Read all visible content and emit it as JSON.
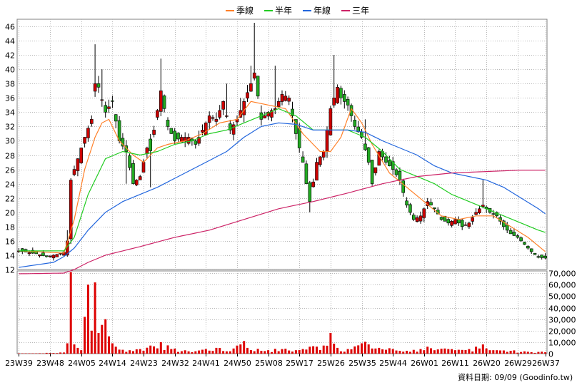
{
  "legend": [
    {
      "name": "季線",
      "color": "#ff7f27"
    },
    {
      "name": "半年",
      "color": "#22cc22"
    },
    {
      "name": "年線",
      "color": "#2266dd"
    },
    {
      "name": "三年",
      "color": "#cc2266"
    }
  ],
  "footer": {
    "label": "資料日期:",
    "date": "09/09",
    "source": "(Goodinfo.tw)"
  },
  "colors": {
    "up": "#cc0000",
    "down": "#22aa22",
    "volume": "#dd0000",
    "grid": "#b8b8b8",
    "frame": "#808080"
  },
  "chart_data": {
    "type": "candlestick",
    "price_axis": {
      "min": 12,
      "max": 47,
      "ticks": [
        12,
        14,
        16,
        18,
        20,
        22,
        24,
        26,
        28,
        30,
        32,
        34,
        36,
        38,
        40,
        42,
        44,
        46
      ]
    },
    "volume_axis": {
      "min": 0,
      "max": 72000,
      "ticks": [
        "0",
        "10,000",
        "20,000",
        "30,000",
        "40,000",
        "50,000",
        "60,000",
        "70,000"
      ],
      "values": [
        0,
        10000,
        20000,
        30000,
        40000,
        50000,
        60000,
        70000
      ]
    },
    "x_labels": [
      "23W39",
      "23W48",
      "24W05",
      "24W14",
      "24W23",
      "24W32",
      "24W41",
      "24W50",
      "25W08",
      "25W17",
      "25W26",
      "25W35",
      "25W44",
      "26W01",
      "26W11",
      "26W20",
      "26W29",
      "26W37"
    ],
    "x_label_index": [
      0,
      9,
      18,
      27,
      36,
      45,
      54,
      63,
      72,
      81,
      90,
      99,
      108,
      117,
      126,
      135,
      144,
      152
    ],
    "anchors": [
      [
        0,
        14.6
      ],
      [
        5,
        14.2
      ],
      [
        8,
        13.8
      ],
      [
        11,
        14.1
      ],
      [
        13,
        14.4
      ],
      [
        14,
        16.0
      ],
      [
        15,
        24.5
      ],
      [
        17,
        27.5
      ],
      [
        19,
        30.5
      ],
      [
        21,
        33.0
      ],
      [
        22,
        38.0
      ],
      [
        23,
        37.5
      ],
      [
        25,
        34.0
      ],
      [
        27,
        35.5
      ],
      [
        29,
        30.0
      ],
      [
        31,
        28.5
      ],
      [
        33,
        24.0
      ],
      [
        35,
        25.0
      ],
      [
        37,
        29.0
      ],
      [
        39,
        31.5
      ],
      [
        41,
        37.0
      ],
      [
        43,
        32.0
      ],
      [
        45,
        30.0
      ],
      [
        47,
        30.5
      ],
      [
        49,
        30.5
      ],
      [
        51,
        29.5
      ],
      [
        53,
        31.5
      ],
      [
        55,
        33.5
      ],
      [
        57,
        33.0
      ],
      [
        59,
        35.5
      ],
      [
        61,
        31.5
      ],
      [
        63,
        33.0
      ],
      [
        65,
        35.5
      ],
      [
        67,
        38.0
      ],
      [
        68,
        39.5
      ],
      [
        70,
        33.0
      ],
      [
        72,
        34.0
      ],
      [
        74,
        34.5
      ],
      [
        76,
        36.5
      ],
      [
        78,
        36.0
      ],
      [
        80,
        31.0
      ],
      [
        82,
        27.0
      ],
      [
        83,
        24.0
      ],
      [
        84,
        21.5
      ],
      [
        86,
        27.0
      ],
      [
        88,
        28.5
      ],
      [
        90,
        34.5
      ],
      [
        92,
        37.5
      ],
      [
        93,
        36.0
      ],
      [
        95,
        35.0
      ],
      [
        97,
        32.0
      ],
      [
        99,
        30.5
      ],
      [
        101,
        27.0
      ],
      [
        102,
        24.0
      ],
      [
        104,
        28.5
      ],
      [
        106,
        27.0
      ],
      [
        108,
        26.0
      ],
      [
        110,
        24.5
      ],
      [
        112,
        21.0
      ],
      [
        114,
        19.0
      ],
      [
        116,
        19.5
      ],
      [
        118,
        21.5
      ],
      [
        120,
        20.5
      ],
      [
        122,
        19.0
      ],
      [
        124,
        18.5
      ],
      [
        126,
        19.0
      ],
      [
        128,
        18.0
      ],
      [
        130,
        18.5
      ],
      [
        132,
        20.0
      ],
      [
        134,
        21.0
      ],
      [
        136,
        20.0
      ],
      [
        138,
        19.5
      ],
      [
        140,
        18.0
      ],
      [
        142,
        17.0
      ],
      [
        144,
        16.5
      ],
      [
        146,
        15.5
      ],
      [
        148,
        14.5
      ],
      [
        150,
        13.7
      ],
      [
        152,
        13.6
      ]
    ],
    "volume_anchors": [
      [
        0,
        0
      ],
      [
        13,
        1000
      ],
      [
        14,
        9000
      ],
      [
        15,
        71000
      ],
      [
        16,
        8000
      ],
      [
        17,
        5000
      ],
      [
        18,
        3000
      ],
      [
        19,
        32000
      ],
      [
        20,
        60000
      ],
      [
        21,
        20000
      ],
      [
        22,
        62000
      ],
      [
        23,
        18000
      ],
      [
        24,
        25000
      ],
      [
        25,
        30000
      ],
      [
        26,
        15000
      ],
      [
        27,
        9000
      ],
      [
        28,
        6000
      ],
      [
        29,
        3500
      ],
      [
        35,
        4000
      ],
      [
        38,
        7000
      ],
      [
        41,
        10000
      ],
      [
        44,
        4000
      ],
      [
        49,
        2000
      ],
      [
        54,
        4000
      ],
      [
        57,
        5000
      ],
      [
        60,
        2000
      ],
      [
        63,
        7000
      ],
      [
        64,
        8000
      ],
      [
        65,
        11000
      ],
      [
        66,
        5000
      ],
      [
        72,
        3000
      ],
      [
        76,
        4000
      ],
      [
        80,
        3000
      ],
      [
        82,
        4000
      ],
      [
        84,
        6000
      ],
      [
        88,
        7000
      ],
      [
        90,
        18000
      ],
      [
        92,
        5000
      ],
      [
        95,
        4000
      ],
      [
        99,
        9000
      ],
      [
        101,
        8000
      ],
      [
        104,
        5000
      ],
      [
        108,
        4000
      ],
      [
        112,
        2500
      ],
      [
        116,
        4000
      ],
      [
        118,
        6000
      ],
      [
        120,
        3000
      ],
      [
        124,
        4000
      ],
      [
        126,
        3000
      ],
      [
        130,
        4000
      ],
      [
        132,
        6000
      ],
      [
        134,
        8000
      ],
      [
        138,
        3000
      ],
      [
        142,
        2500
      ],
      [
        146,
        2000
      ],
      [
        150,
        1500
      ],
      [
        152,
        1200
      ]
    ],
    "spikes": [
      [
        14,
        17.5,
        "up"
      ],
      [
        22,
        43.5,
        "up"
      ],
      [
        24,
        40.0,
        "up"
      ],
      [
        41,
        41.5,
        "up"
      ],
      [
        60,
        38.0,
        "up"
      ],
      [
        64,
        36.0,
        "up"
      ],
      [
        67,
        40.5,
        "up"
      ],
      [
        68,
        46.5,
        "up"
      ],
      [
        74,
        40.5,
        "up"
      ],
      [
        78,
        35.0,
        "up"
      ],
      [
        91,
        42.0,
        "up"
      ],
      [
        100,
        33.0,
        "down"
      ],
      [
        134,
        24.5,
        "up"
      ],
      [
        84,
        20.0,
        "down"
      ],
      [
        31,
        24.0,
        "down"
      ],
      [
        38,
        23.5,
        "down"
      ]
    ],
    "ma": [
      {
        "name": "季線",
        "color": "#ff7f27",
        "anchors": [
          [
            0,
            14.6
          ],
          [
            13,
            14.3
          ],
          [
            16,
            19.0
          ],
          [
            19,
            26.0
          ],
          [
            22,
            30.5
          ],
          [
            24,
            32.5
          ],
          [
            26,
            33.0
          ],
          [
            29,
            30.0
          ],
          [
            33,
            28.0
          ],
          [
            36,
            27.0
          ],
          [
            40,
            29.0
          ],
          [
            43,
            29.5
          ],
          [
            48,
            30.0
          ],
          [
            53,
            31.0
          ],
          [
            58,
            32.5
          ],
          [
            63,
            33.0
          ],
          [
            67,
            35.5
          ],
          [
            72,
            35.0
          ],
          [
            77,
            34.5
          ],
          [
            82,
            31.0
          ],
          [
            87,
            28.5
          ],
          [
            90,
            28.5
          ],
          [
            93,
            30.5
          ],
          [
            96,
            34.5
          ],
          [
            99,
            32.5
          ],
          [
            102,
            29.5
          ],
          [
            107,
            25.5
          ],
          [
            112,
            23.5
          ],
          [
            117,
            21.5
          ],
          [
            122,
            19.5
          ],
          [
            127,
            19.0
          ],
          [
            132,
            19.5
          ],
          [
            137,
            19.5
          ],
          [
            142,
            18.0
          ],
          [
            147,
            16.5
          ],
          [
            152,
            14.5
          ]
        ]
      },
      {
        "name": "半年",
        "color": "#22cc22",
        "anchors": [
          [
            0,
            14.6
          ],
          [
            13,
            14.6
          ],
          [
            16,
            16.5
          ],
          [
            20,
            22.5
          ],
          [
            25,
            27.5
          ],
          [
            30,
            28.5
          ],
          [
            35,
            28.0
          ],
          [
            40,
            28.5
          ],
          [
            45,
            29.5
          ],
          [
            50,
            30.0
          ],
          [
            55,
            31.0
          ],
          [
            60,
            31.5
          ],
          [
            65,
            32.5
          ],
          [
            70,
            33.5
          ],
          [
            75,
            34.5
          ],
          [
            80,
            33.5
          ],
          [
            85,
            31.5
          ],
          [
            90,
            31.5
          ],
          [
            95,
            31.5
          ],
          [
            100,
            30.5
          ],
          [
            105,
            28.5
          ],
          [
            110,
            26.0
          ],
          [
            115,
            25.0
          ],
          [
            120,
            24.0
          ],
          [
            125,
            22.5
          ],
          [
            130,
            21.5
          ],
          [
            135,
            20.5
          ],
          [
            140,
            19.5
          ],
          [
            145,
            18.5
          ],
          [
            150,
            17.5
          ],
          [
            152,
            17.2
          ]
        ]
      },
      {
        "name": "年線",
        "color": "#2266dd",
        "anchors": [
          [
            0,
            12.3
          ],
          [
            10,
            13.0
          ],
          [
            13,
            13.8
          ],
          [
            16,
            15.0
          ],
          [
            20,
            17.5
          ],
          [
            25,
            20.0
          ],
          [
            30,
            21.5
          ],
          [
            40,
            23.5
          ],
          [
            50,
            26.0
          ],
          [
            60,
            28.5
          ],
          [
            65,
            30.5
          ],
          [
            70,
            32.0
          ],
          [
            75,
            32.5
          ],
          [
            80,
            32.3
          ],
          [
            85,
            31.5
          ],
          [
            90,
            31.5
          ],
          [
            95,
            31.5
          ],
          [
            100,
            31.2
          ],
          [
            105,
            30.0
          ],
          [
            110,
            29.0
          ],
          [
            115,
            28.0
          ],
          [
            120,
            26.5
          ],
          [
            125,
            25.5
          ],
          [
            130,
            25.0
          ],
          [
            135,
            24.5
          ],
          [
            140,
            23.5
          ],
          [
            145,
            22.0
          ],
          [
            150,
            20.5
          ],
          [
            152,
            19.8
          ]
        ]
      },
      {
        "name": "三年",
        "color": "#cc2266",
        "anchors": [
          [
            0,
            11.4
          ],
          [
            13,
            11.5
          ],
          [
            16,
            12.0
          ],
          [
            20,
            13.0
          ],
          [
            25,
            14.0
          ],
          [
            35,
            15.2
          ],
          [
            45,
            16.5
          ],
          [
            55,
            17.5
          ],
          [
            65,
            19.0
          ],
          [
            75,
            20.5
          ],
          [
            85,
            21.5
          ],
          [
            95,
            22.7
          ],
          [
            105,
            24.0
          ],
          [
            115,
            25.0
          ],
          [
            125,
            25.5
          ],
          [
            135,
            25.7
          ],
          [
            145,
            25.9
          ],
          [
            152,
            25.9
          ]
        ]
      }
    ]
  }
}
